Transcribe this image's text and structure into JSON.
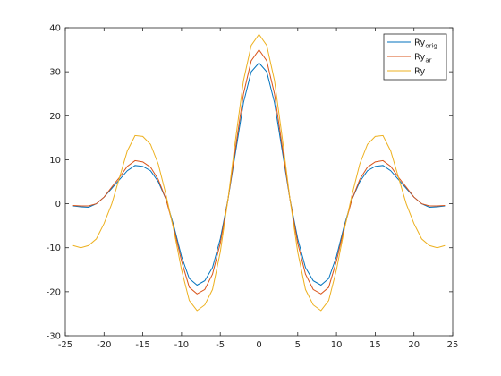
{
  "chart_data": {
    "type": "line",
    "x": [
      -24,
      -23,
      -22,
      -21,
      -20,
      -19,
      -18,
      -17,
      -16,
      -15,
      -14,
      -13,
      -12,
      -11,
      -10,
      -9,
      -8,
      -7,
      -6,
      -5,
      -4,
      -3,
      -2,
      -1,
      0,
      1,
      2,
      3,
      4,
      5,
      6,
      7,
      8,
      9,
      10,
      11,
      12,
      13,
      14,
      15,
      16,
      17,
      18,
      19,
      20,
      21,
      22,
      23,
      24
    ],
    "series": [
      {
        "name": "Ry",
        "subscript": "orig",
        "color": "#0072bd",
        "values": [
          -0.5,
          -0.7,
          -0.8,
          0,
          1.5,
          3.5,
          5.5,
          7.5,
          8.7,
          8.5,
          7.5,
          5,
          1,
          -5,
          -12,
          -17,
          -18.5,
          -17.5,
          -14.5,
          -8,
          1,
          12,
          23,
          30,
          32,
          30,
          23,
          12,
          1,
          -8,
          -14.5,
          -17.5,
          -18.5,
          -17,
          -12,
          -5,
          1,
          5,
          7.5,
          8.5,
          8.7,
          7.5,
          5.5,
          3.5,
          1.5,
          0,
          -0.8,
          -0.7,
          -0.5
        ]
      },
      {
        "name": "Ry",
        "subscript": "ar",
        "color": "#d95319",
        "values": [
          -0.4,
          -0.5,
          -0.5,
          0,
          1.5,
          3.8,
          6,
          8.5,
          9.8,
          9.5,
          8.3,
          5.5,
          1,
          -5.5,
          -13,
          -19,
          -20.5,
          -19.5,
          -16,
          -9,
          1,
          13,
          25,
          32.5,
          35,
          32.5,
          25,
          13,
          1,
          -9,
          -16,
          -19.5,
          -20.5,
          -19,
          -13,
          -5.5,
          1,
          5.5,
          8.3,
          9.5,
          9.8,
          8.5,
          6,
          3.8,
          1.5,
          0,
          -0.5,
          -0.5,
          -0.4
        ]
      },
      {
        "name": "Ry",
        "color": "#edb120",
        "values": [
          -9.5,
          -10,
          -9.5,
          -8,
          -4.5,
          0,
          6,
          12,
          15.5,
          15.3,
          13.5,
          9,
          2,
          -6,
          -15,
          -22,
          -24.3,
          -23,
          -19.5,
          -11,
          1,
          15,
          28,
          36,
          38.5,
          36,
          28,
          15,
          1,
          -11,
          -19.5,
          -23,
          -24.3,
          -22,
          -15,
          -6,
          2,
          9,
          13.5,
          15.3,
          15.5,
          12,
          6,
          0,
          -4.5,
          -8,
          -9.5,
          -10,
          -9.5
        ]
      }
    ],
    "xlim": [
      -25,
      25
    ],
    "xticks": [
      -25,
      -20,
      -15,
      -10,
      -5,
      0,
      5,
      10,
      15,
      20,
      25
    ],
    "ylim": [
      -30,
      40
    ],
    "yticks": [
      -30,
      -20,
      -10,
      0,
      10,
      20,
      30,
      40
    ],
    "grid": false,
    "legend": "top-right"
  }
}
